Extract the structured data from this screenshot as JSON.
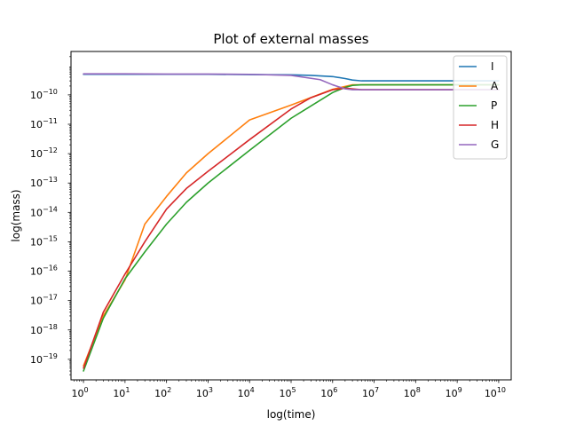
{
  "chart_data": {
    "type": "line",
    "title": "Plot of external masses",
    "xlabel": "log(time)",
    "ylabel": "log(mass)",
    "xscale": "log",
    "yscale": "log",
    "xlim": [
      0.5,
      20000000000
    ],
    "ylim": [
      2e-20,
      3e-09
    ],
    "grid": false,
    "legend_position": "top-right",
    "x_tick_labels": [
      {
        "base": "10",
        "exp": "0",
        "value": 1
      },
      {
        "base": "10",
        "exp": "1",
        "value": 10
      },
      {
        "base": "10",
        "exp": "2",
        "value": 100
      },
      {
        "base": "10",
        "exp": "3",
        "value": 1000
      },
      {
        "base": "10",
        "exp": "4",
        "value": 10000
      },
      {
        "base": "10",
        "exp": "5",
        "value": 100000
      },
      {
        "base": "10",
        "exp": "6",
        "value": 1000000
      },
      {
        "base": "10",
        "exp": "7",
        "value": 10000000
      },
      {
        "base": "10",
        "exp": "8",
        "value": 100000000
      },
      {
        "base": "10",
        "exp": "9",
        "value": 1000000000
      },
      {
        "base": "10",
        "exp": "10",
        "value": 10000000000
      }
    ],
    "y_tick_labels": [
      {
        "base": "10",
        "exp": "−19",
        "value": 1e-19
      },
      {
        "base": "10",
        "exp": "−18",
        "value": 1e-18
      },
      {
        "base": "10",
        "exp": "−17",
        "value": 1e-17
      },
      {
        "base": "10",
        "exp": "−16",
        "value": 1e-16
      },
      {
        "base": "10",
        "exp": "−15",
        "value": 1e-15
      },
      {
        "base": "10",
        "exp": "−14",
        "value": 1e-14
      },
      {
        "base": "10",
        "exp": "−13",
        "value": 1e-13
      },
      {
        "base": "10",
        "exp": "−12",
        "value": 1e-12
      },
      {
        "base": "10",
        "exp": "−11",
        "value": 1e-11
      },
      {
        "base": "10",
        "exp": "−10",
        "value": 1e-10
      }
    ],
    "series": [
      {
        "name": "I",
        "color": "#1f77b4",
        "x": [
          1,
          10,
          100,
          1000,
          10000,
          100000,
          300000,
          1000000,
          2000000,
          3000000,
          5000000,
          10000000,
          100000000,
          1000000000,
          10000000000
        ],
        "y": [
          5e-10,
          5e-10,
          5e-10,
          5e-10,
          4.9e-10,
          4.8e-10,
          4.6e-10,
          4.2e-10,
          3.6e-10,
          3.2e-10,
          3e-10,
          3e-10,
          3e-10,
          3e-10,
          3e-10
        ]
      },
      {
        "name": "A",
        "color": "#ff7f0e",
        "x": [
          1,
          3,
          10,
          30,
          100,
          300,
          1000,
          10000,
          100000,
          1000000,
          3000000,
          10000000,
          100000000,
          1000000000,
          10000000000
        ],
        "y": [
          6e-20,
          3e-18,
          5e-17,
          4e-15,
          3.5e-14,
          2.2e-13,
          1e-12,
          1.4e-11,
          4.5e-11,
          1.55e-10,
          2.2e-10,
          2.2e-10,
          2.2e-10,
          2.2e-10,
          2.2e-10
        ]
      },
      {
        "name": "P",
        "color": "#2ca02c",
        "x": [
          1,
          3,
          10,
          30,
          100,
          300,
          1000,
          10000,
          100000,
          1000000,
          2000000,
          3000000,
          5000000,
          10000000,
          100000000,
          1000000000,
          10000000000
        ],
        "y": [
          4e-20,
          2.5e-18,
          5.5e-17,
          4.5e-16,
          4e-15,
          2.2e-14,
          1e-13,
          1.3e-12,
          1.6e-11,
          1.2e-10,
          1.8e-10,
          2.1e-10,
          2.2e-10,
          2.2e-10,
          2.2e-10,
          2.2e-10,
          2.2e-10
        ]
      },
      {
        "name": "H",
        "color": "#d62728",
        "x": [
          1,
          3,
          10,
          30,
          100,
          300,
          1000,
          10000,
          100000,
          300000,
          1000000,
          2000000,
          3000000,
          5000000,
          10000000,
          100000000,
          1000000000,
          10000000000
        ],
        "y": [
          5e-20,
          4e-18,
          8e-17,
          1e-15,
          1.3e-14,
          6.5e-14,
          2.5e-13,
          3e-12,
          3.3e-11,
          8e-11,
          1.5e-10,
          1.7e-10,
          1.6e-10,
          1.5e-10,
          1.5e-10,
          1.5e-10,
          1.5e-10,
          1.5e-10
        ]
      },
      {
        "name": "G",
        "color": "#9467bd",
        "x": [
          1,
          10,
          100,
          1000,
          10000,
          100000,
          500000,
          1000000,
          2000000,
          3000000,
          5000000,
          10000000,
          100000000,
          1000000000,
          10000000000
        ],
        "y": [
          5.2e-10,
          5.2e-10,
          5.1e-10,
          5.1e-10,
          5e-10,
          4.6e-10,
          3.3e-10,
          2.2e-10,
          1.6e-10,
          1.5e-10,
          1.5e-10,
          1.5e-10,
          1.5e-10,
          1.5e-10,
          1.5e-10
        ]
      }
    ]
  }
}
